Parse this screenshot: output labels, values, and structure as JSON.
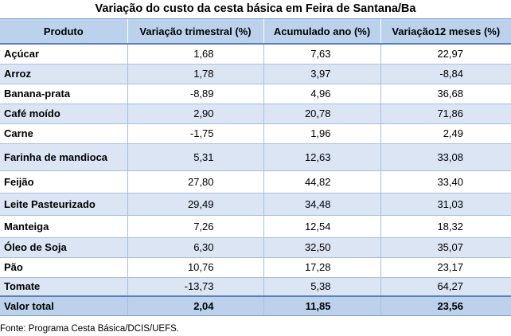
{
  "title": "Variação do custo da cesta básica em Feira de Santana/Ba",
  "table": {
    "headers": [
      "Produto",
      "Variação trimestral (%)",
      "Acumulado ano (%)",
      "Variação12 meses (%)"
    ],
    "rows": [
      [
        "Açúcar",
        "1,68",
        "7,63",
        "22,97"
      ],
      [
        "Arroz",
        "1,78",
        "3,97",
        "-8,84"
      ],
      [
        "Banana-prata",
        "-8,89",
        "4,96",
        "36,68"
      ],
      [
        "Café moído",
        "2,90",
        "20,78",
        "71,86"
      ],
      [
        "Carne",
        "-1,75",
        "1,96",
        "2,49"
      ],
      [
        "Farinha de mandioca",
        "5,31",
        "12,63",
        "33,08"
      ],
      [
        "Feijão",
        "27,80",
        "44,82",
        "33,40"
      ],
      [
        "Leite Pasteurizado",
        "29,49",
        "34,48",
        "31,03"
      ],
      [
        "Manteiga",
        "7,26",
        "12,54",
        "18,32"
      ],
      [
        "Óleo de Soja",
        "6,30",
        "32,50",
        "35,07"
      ],
      [
        "Pão",
        "10,76",
        "17,28",
        "23,17"
      ],
      [
        "Tomate",
        "-13,73",
        "5,38",
        "64,27"
      ]
    ],
    "total": [
      "Valor total",
      "2,04",
      "11,85",
      "23,56"
    ]
  },
  "source": "Fonte: Programa Cesta Básica/DCIS/UEFS.",
  "colors": {
    "header_fill": "#bcd2ec",
    "row_shade": "#dbe5f3",
    "rule": "#5a82bb"
  }
}
